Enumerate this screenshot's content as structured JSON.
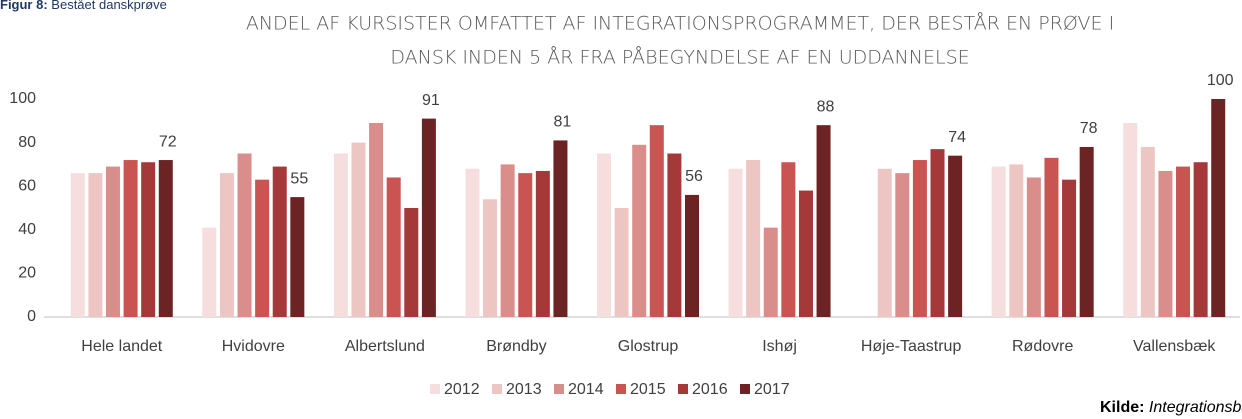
{
  "figure_label": "Figur 8:",
  "figure_caption": "Bestået danskprøve",
  "source_label": "Kilde:",
  "source": "Integrationsbarometret.d",
  "chart_data": {
    "type": "bar",
    "title": [
      "ANDEL AF KURSISTER OMFATTET AF INTEGRATIONSPROGRAMMET, DER BESTÅR EN PRØVE I",
      "DANSK INDEN 5 ÅR FRA PÅBEGYNDELSE AF EN UDDANNELSE"
    ],
    "categories": [
      "Hele landet",
      "Hvidovre",
      "Albertslund",
      "Brøndby",
      "Glostrup",
      "Ishøj",
      "Høje-Taastrup",
      "Rødovre",
      "Vallensbæk"
    ],
    "series": [
      {
        "name": "2012",
        "color": "#f6dede",
        "values": [
          66,
          41,
          75,
          68,
          75,
          68,
          null,
          69,
          89
        ]
      },
      {
        "name": "2013",
        "color": "#edc6c4",
        "values": [
          66,
          66,
          80,
          54,
          50,
          72,
          68,
          70,
          78
        ]
      },
      {
        "name": "2014",
        "color": "#d98e8b",
        "values": [
          69,
          75,
          89,
          70,
          79,
          41,
          66,
          64,
          67
        ]
      },
      {
        "name": "2015",
        "color": "#c95452",
        "values": [
          72,
          63,
          64,
          66,
          88,
          71,
          72,
          73,
          69
        ]
      },
      {
        "name": "2016",
        "color": "#a53838",
        "values": [
          71,
          69,
          50,
          67,
          75,
          58,
          77,
          63,
          71
        ]
      },
      {
        "name": "2017",
        "color": "#6b2323",
        "values": [
          72,
          55,
          91,
          81,
          56,
          88,
          74,
          78,
          100
        ],
        "labeled": true
      }
    ],
    "ylim": [
      0,
      100
    ],
    "yticks": [
      0,
      20,
      40,
      60,
      80,
      100
    ],
    "grid": false,
    "legend": "bottom"
  }
}
